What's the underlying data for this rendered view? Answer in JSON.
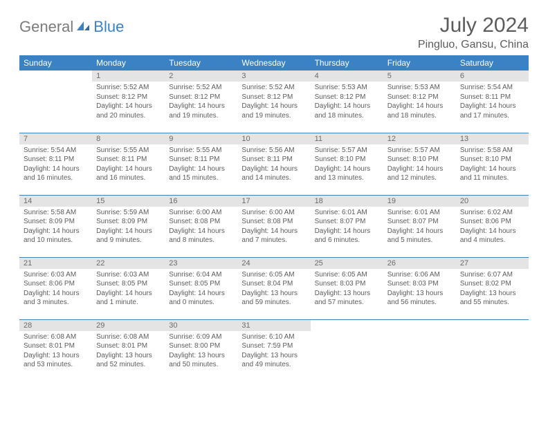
{
  "logo": {
    "text1": "General",
    "text2": "Blue",
    "icon_color": "#3b82c4",
    "text1_color": "#7b7b7b"
  },
  "header": {
    "month": "July 2024",
    "location": "Pingluo, Gansu, China"
  },
  "colors": {
    "header_bg": "#3b82c4",
    "header_text": "#ffffff",
    "daynum_bg": "#e4e4e4",
    "text": "#5c5c5c",
    "border": "#3b82c4",
    "page_bg": "#ffffff"
  },
  "typography": {
    "month_fontsize": 30,
    "location_fontsize": 16,
    "weekday_fontsize": 12,
    "daynum_fontsize": 11,
    "body_fontsize": 10
  },
  "weekdays": [
    "Sunday",
    "Monday",
    "Tuesday",
    "Wednesday",
    "Thursday",
    "Friday",
    "Saturday"
  ],
  "weeks": [
    [
      null,
      {
        "n": "1",
        "sr": "Sunrise: 5:52 AM",
        "ss": "Sunset: 8:12 PM",
        "dl": "Daylight: 14 hours and 20 minutes."
      },
      {
        "n": "2",
        "sr": "Sunrise: 5:52 AM",
        "ss": "Sunset: 8:12 PM",
        "dl": "Daylight: 14 hours and 19 minutes."
      },
      {
        "n": "3",
        "sr": "Sunrise: 5:52 AM",
        "ss": "Sunset: 8:12 PM",
        "dl": "Daylight: 14 hours and 19 minutes."
      },
      {
        "n": "4",
        "sr": "Sunrise: 5:53 AM",
        "ss": "Sunset: 8:12 PM",
        "dl": "Daylight: 14 hours and 18 minutes."
      },
      {
        "n": "5",
        "sr": "Sunrise: 5:53 AM",
        "ss": "Sunset: 8:12 PM",
        "dl": "Daylight: 14 hours and 18 minutes."
      },
      {
        "n": "6",
        "sr": "Sunrise: 5:54 AM",
        "ss": "Sunset: 8:11 PM",
        "dl": "Daylight: 14 hours and 17 minutes."
      }
    ],
    [
      {
        "n": "7",
        "sr": "Sunrise: 5:54 AM",
        "ss": "Sunset: 8:11 PM",
        "dl": "Daylight: 14 hours and 16 minutes."
      },
      {
        "n": "8",
        "sr": "Sunrise: 5:55 AM",
        "ss": "Sunset: 8:11 PM",
        "dl": "Daylight: 14 hours and 16 minutes."
      },
      {
        "n": "9",
        "sr": "Sunrise: 5:55 AM",
        "ss": "Sunset: 8:11 PM",
        "dl": "Daylight: 14 hours and 15 minutes."
      },
      {
        "n": "10",
        "sr": "Sunrise: 5:56 AM",
        "ss": "Sunset: 8:11 PM",
        "dl": "Daylight: 14 hours and 14 minutes."
      },
      {
        "n": "11",
        "sr": "Sunrise: 5:57 AM",
        "ss": "Sunset: 8:10 PM",
        "dl": "Daylight: 14 hours and 13 minutes."
      },
      {
        "n": "12",
        "sr": "Sunrise: 5:57 AM",
        "ss": "Sunset: 8:10 PM",
        "dl": "Daylight: 14 hours and 12 minutes."
      },
      {
        "n": "13",
        "sr": "Sunrise: 5:58 AM",
        "ss": "Sunset: 8:10 PM",
        "dl": "Daylight: 14 hours and 11 minutes."
      }
    ],
    [
      {
        "n": "14",
        "sr": "Sunrise: 5:58 AM",
        "ss": "Sunset: 8:09 PM",
        "dl": "Daylight: 14 hours and 10 minutes."
      },
      {
        "n": "15",
        "sr": "Sunrise: 5:59 AM",
        "ss": "Sunset: 8:09 PM",
        "dl": "Daylight: 14 hours and 9 minutes."
      },
      {
        "n": "16",
        "sr": "Sunrise: 6:00 AM",
        "ss": "Sunset: 8:08 PM",
        "dl": "Daylight: 14 hours and 8 minutes."
      },
      {
        "n": "17",
        "sr": "Sunrise: 6:00 AM",
        "ss": "Sunset: 8:08 PM",
        "dl": "Daylight: 14 hours and 7 minutes."
      },
      {
        "n": "18",
        "sr": "Sunrise: 6:01 AM",
        "ss": "Sunset: 8:07 PM",
        "dl": "Daylight: 14 hours and 6 minutes."
      },
      {
        "n": "19",
        "sr": "Sunrise: 6:01 AM",
        "ss": "Sunset: 8:07 PM",
        "dl": "Daylight: 14 hours and 5 minutes."
      },
      {
        "n": "20",
        "sr": "Sunrise: 6:02 AM",
        "ss": "Sunset: 8:06 PM",
        "dl": "Daylight: 14 hours and 4 minutes."
      }
    ],
    [
      {
        "n": "21",
        "sr": "Sunrise: 6:03 AM",
        "ss": "Sunset: 8:06 PM",
        "dl": "Daylight: 14 hours and 3 minutes."
      },
      {
        "n": "22",
        "sr": "Sunrise: 6:03 AM",
        "ss": "Sunset: 8:05 PM",
        "dl": "Daylight: 14 hours and 1 minute."
      },
      {
        "n": "23",
        "sr": "Sunrise: 6:04 AM",
        "ss": "Sunset: 8:05 PM",
        "dl": "Daylight: 14 hours and 0 minutes."
      },
      {
        "n": "24",
        "sr": "Sunrise: 6:05 AM",
        "ss": "Sunset: 8:04 PM",
        "dl": "Daylight: 13 hours and 59 minutes."
      },
      {
        "n": "25",
        "sr": "Sunrise: 6:05 AM",
        "ss": "Sunset: 8:03 PM",
        "dl": "Daylight: 13 hours and 57 minutes."
      },
      {
        "n": "26",
        "sr": "Sunrise: 6:06 AM",
        "ss": "Sunset: 8:03 PM",
        "dl": "Daylight: 13 hours and 56 minutes."
      },
      {
        "n": "27",
        "sr": "Sunrise: 6:07 AM",
        "ss": "Sunset: 8:02 PM",
        "dl": "Daylight: 13 hours and 55 minutes."
      }
    ],
    [
      {
        "n": "28",
        "sr": "Sunrise: 6:08 AM",
        "ss": "Sunset: 8:01 PM",
        "dl": "Daylight: 13 hours and 53 minutes."
      },
      {
        "n": "29",
        "sr": "Sunrise: 6:08 AM",
        "ss": "Sunset: 8:01 PM",
        "dl": "Daylight: 13 hours and 52 minutes."
      },
      {
        "n": "30",
        "sr": "Sunrise: 6:09 AM",
        "ss": "Sunset: 8:00 PM",
        "dl": "Daylight: 13 hours and 50 minutes."
      },
      {
        "n": "31",
        "sr": "Sunrise: 6:10 AM",
        "ss": "Sunset: 7:59 PM",
        "dl": "Daylight: 13 hours and 49 minutes."
      },
      null,
      null,
      null
    ]
  ]
}
